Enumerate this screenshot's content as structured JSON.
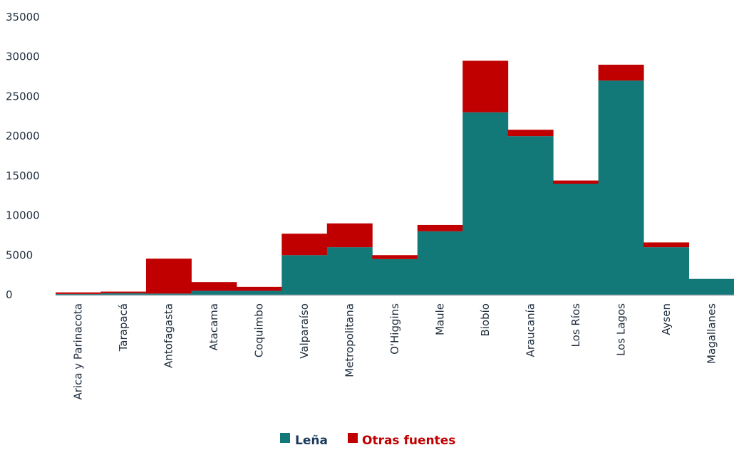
{
  "chart_data": {
    "type": "bar",
    "stacked": true,
    "bar_gap": "none",
    "categories": [
      "Arica y Parinacota",
      "Tarapacá",
      "Antofagasta",
      "Atacama",
      "Coquimbo",
      "Valparaíso",
      "Metropolitana",
      "O'Higgins",
      "Maule",
      "Biobío",
      "Araucanía",
      "Los Ríos",
      "Los Lagos",
      "Aysen",
      "Magallanes"
    ],
    "series": [
      {
        "name": "Leña",
        "color": "#137878",
        "values": [
          100,
          200,
          150,
          500,
          500,
          5000,
          6000,
          4500,
          8000,
          23000,
          20000,
          14000,
          27000,
          6000,
          2000
        ]
      },
      {
        "name": "Otras fuentes",
        "color": "#c00000",
        "values": [
          200,
          200,
          4400,
          1100,
          500,
          2700,
          3000,
          500,
          800,
          6500,
          800,
          400,
          2000,
          600,
          0
        ]
      }
    ],
    "ylim": [
      0,
      35000
    ],
    "yticks": [
      0,
      5000,
      10000,
      15000,
      20000,
      25000,
      30000,
      35000
    ],
    "ytick_labels": [
      "0",
      "5000",
      "10000",
      "15000",
      "20000",
      "25000",
      "30000",
      "35000"
    ],
    "grid": false,
    "legend_position": "bottom",
    "legend_text_colors": [
      "#1a3a5c",
      "#c00000"
    ],
    "axis_color": "#9aa5ad"
  }
}
